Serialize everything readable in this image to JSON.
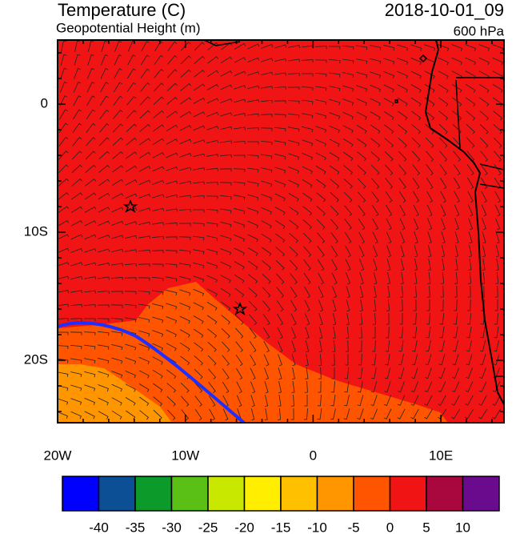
{
  "header": {
    "title": "Temperature (C)",
    "subtitle": "Geopotential Height (m)",
    "date": "2018-10-01_09",
    "level": "600 hPa"
  },
  "map": {
    "lat_labels": [
      "0",
      "10S",
      "20S"
    ],
    "lon_labels": [
      "20W",
      "10W",
      "0",
      "10E"
    ]
  },
  "colorbar": {
    "colors": [
      "#0000ff",
      "#0c4f94",
      "#0c9a2a",
      "#5ac016",
      "#c8e800",
      "#ffee00",
      "#ffc000",
      "#ff9600",
      "#ff5400",
      "#f01414",
      "#a8083e",
      "#6a0a8c"
    ],
    "labels": [
      -40,
      -35,
      -30,
      -25,
      -20,
      -15,
      -10,
      -5,
      0,
      5,
      10
    ]
  }
}
